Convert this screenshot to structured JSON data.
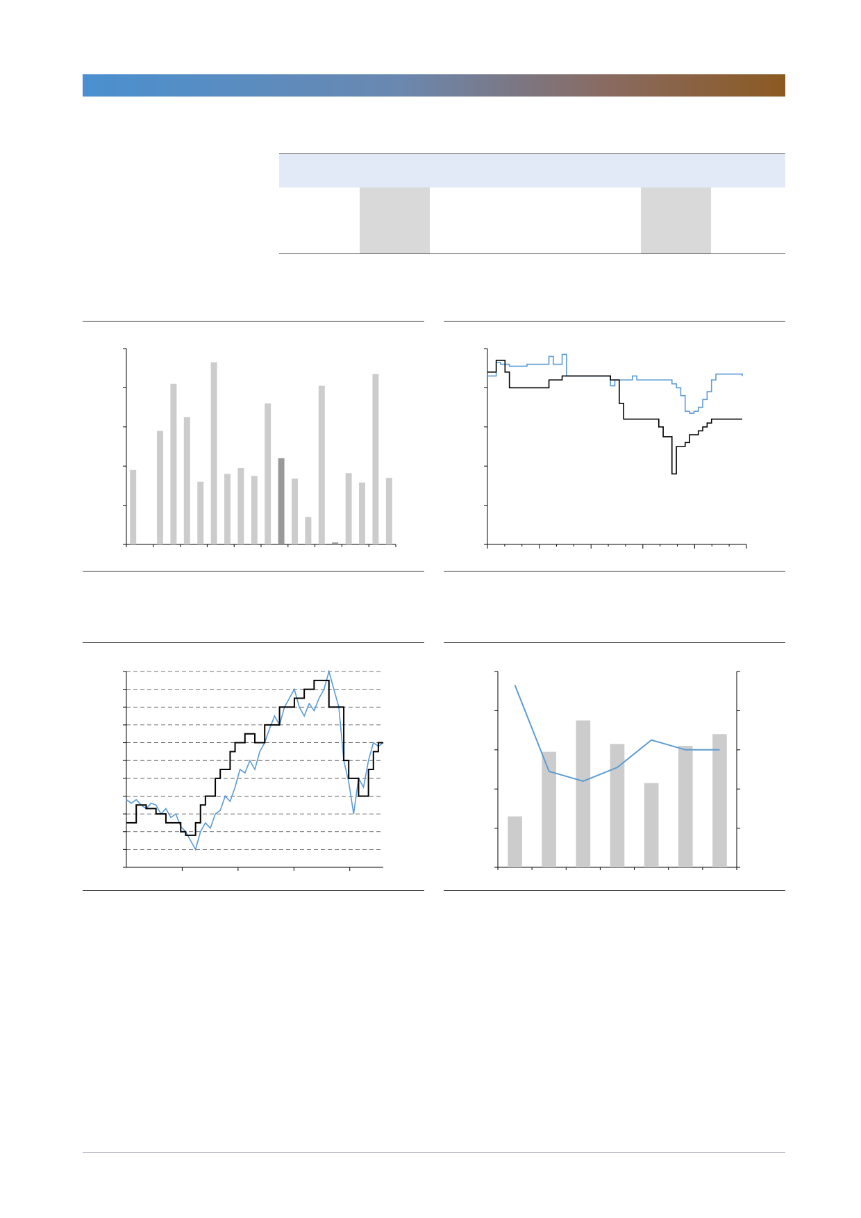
{
  "colors": {
    "banner_left": "#4a90d0",
    "banner_right": "#8b5a22",
    "summary_header_fill": "#e2e9f7",
    "highlight_cell_fill": "#d9d9d9",
    "bar_gray": "#cccccc",
    "bar_dark_gray": "#999999",
    "line_blue": "#5b9bd5",
    "line_black": "#000000"
  },
  "chart_data": [
    {
      "type": "bar",
      "ylim": [
        0,
        5
      ],
      "values": [
        1.9,
        0,
        2.9,
        4.1,
        3.25,
        1.6,
        4.65,
        1.8,
        1.95,
        1.75,
        3.6,
        2.2,
        1.68,
        0.7,
        4.05,
        0.05,
        1.82,
        1.58,
        4.35,
        1.7
      ],
      "highlight_index": [
        11,
        15
      ],
      "ticks_y": 5,
      "ticks_x": 10,
      "grid": false
    },
    {
      "type": "line",
      "ylim": [
        0,
        5
      ],
      "ticks_y": 5,
      "ticks_x": 15,
      "grid": false,
      "series": [
        {
          "color": "blue",
          "values": [
            4.3,
            4.3,
            4.65,
            4.6,
            4.6,
            4.55,
            4.55,
            4.55,
            4.55,
            4.6,
            4.6,
            4.6,
            4.6,
            4.6,
            4.8,
            4.6,
            4.6,
            4.85,
            4.3,
            4.3,
            4.3,
            4.3,
            4.3,
            4.3,
            4.3,
            4.3,
            4.3,
            4.3,
            4.05,
            4.2,
            4.2,
            4.2,
            4.2,
            4.3,
            4.2,
            4.2,
            4.2,
            4.2,
            4.2,
            4.2,
            4.2,
            4.2,
            4.1,
            4.0,
            3.8,
            3.4,
            3.35,
            3.4,
            3.5,
            3.7,
            3.9,
            4.2,
            4.35,
            4.35,
            4.35,
            4.35,
            4.35,
            4.35,
            4.3
          ]
        },
        {
          "color": "black",
          "values": [
            4.4,
            4.4,
            4.7,
            4.7,
            4.4,
            4.0,
            4.0,
            4.0,
            4.0,
            4.0,
            4.0,
            4.0,
            4.0,
            4.0,
            4.2,
            4.2,
            4.2,
            4.3,
            4.3,
            4.3,
            4.3,
            4.3,
            4.3,
            4.3,
            4.3,
            4.3,
            4.3,
            4.3,
            4.2,
            4.2,
            3.6,
            3.2,
            3.2,
            3.2,
            3.2,
            3.2,
            3.2,
            3.2,
            3.2,
            3.0,
            2.75,
            2.75,
            1.8,
            2.5,
            2.5,
            2.6,
            2.8,
            2.8,
            2.9,
            3.0,
            3.1,
            3.2,
            3.2,
            3.2,
            3.2,
            3.2,
            3.2,
            3.2,
            3.2
          ]
        }
      ]
    },
    {
      "type": "line",
      "ylim": [
        0,
        11
      ],
      "ticks_y": 11,
      "ticks_x": 4,
      "grid": true,
      "series": [
        {
          "color": "blue",
          "values": [
            3.8,
            3.6,
            3.8,
            3.5,
            3.3,
            3.6,
            3.5,
            3.0,
            3.3,
            2.8,
            3.0,
            2.3,
            2.0,
            1.5,
            1.0,
            2.0,
            2.5,
            2.2,
            3.0,
            3.2,
            4.0,
            3.7,
            4.5,
            5.5,
            5.3,
            6.0,
            5.5,
            6.5,
            7.0,
            7.8,
            8.5,
            8.0,
            9.0,
            9.5,
            10.0,
            9.0,
            8.5,
            9.2,
            8.8,
            9.5,
            10.0,
            11.0,
            10.0,
            9.0,
            6.0,
            4.8,
            3.0,
            5.0,
            4.5,
            6.0,
            7.0,
            6.8,
            7.0
          ]
        },
        {
          "color": "black",
          "values": [
            2.5,
            2.5,
            3.5,
            3.5,
            3.3,
            3.3,
            3.0,
            3.0,
            2.5,
            2.5,
            2.5,
            2.0,
            1.8,
            1.8,
            2.5,
            3.5,
            4.0,
            4.0,
            5.0,
            5.5,
            5.5,
            6.5,
            7.0,
            7.0,
            7.5,
            7.5,
            7.0,
            7.0,
            8.0,
            8.0,
            8.0,
            9.0,
            9.0,
            9.0,
            9.5,
            9.5,
            10.0,
            10.0,
            10.5,
            10.5,
            10.5,
            9.0,
            9.0,
            9.0,
            6.0,
            5.0,
            5.0,
            4.0,
            4.0,
            5.5,
            6.5,
            7.0,
            7.0
          ]
        }
      ]
    },
    {
      "type": "bar",
      "ylim": [
        0,
        5
      ],
      "y2lim": [
        0,
        5
      ],
      "values": [
        1.3,
        2.95,
        3.75,
        3.15,
        2.15,
        3.1,
        3.4
      ],
      "line_values": [
        4.65,
        2.45,
        2.2,
        2.55,
        3.25,
        3.0,
        3.0
      ],
      "ticks_y": 5,
      "grid": false
    }
  ]
}
